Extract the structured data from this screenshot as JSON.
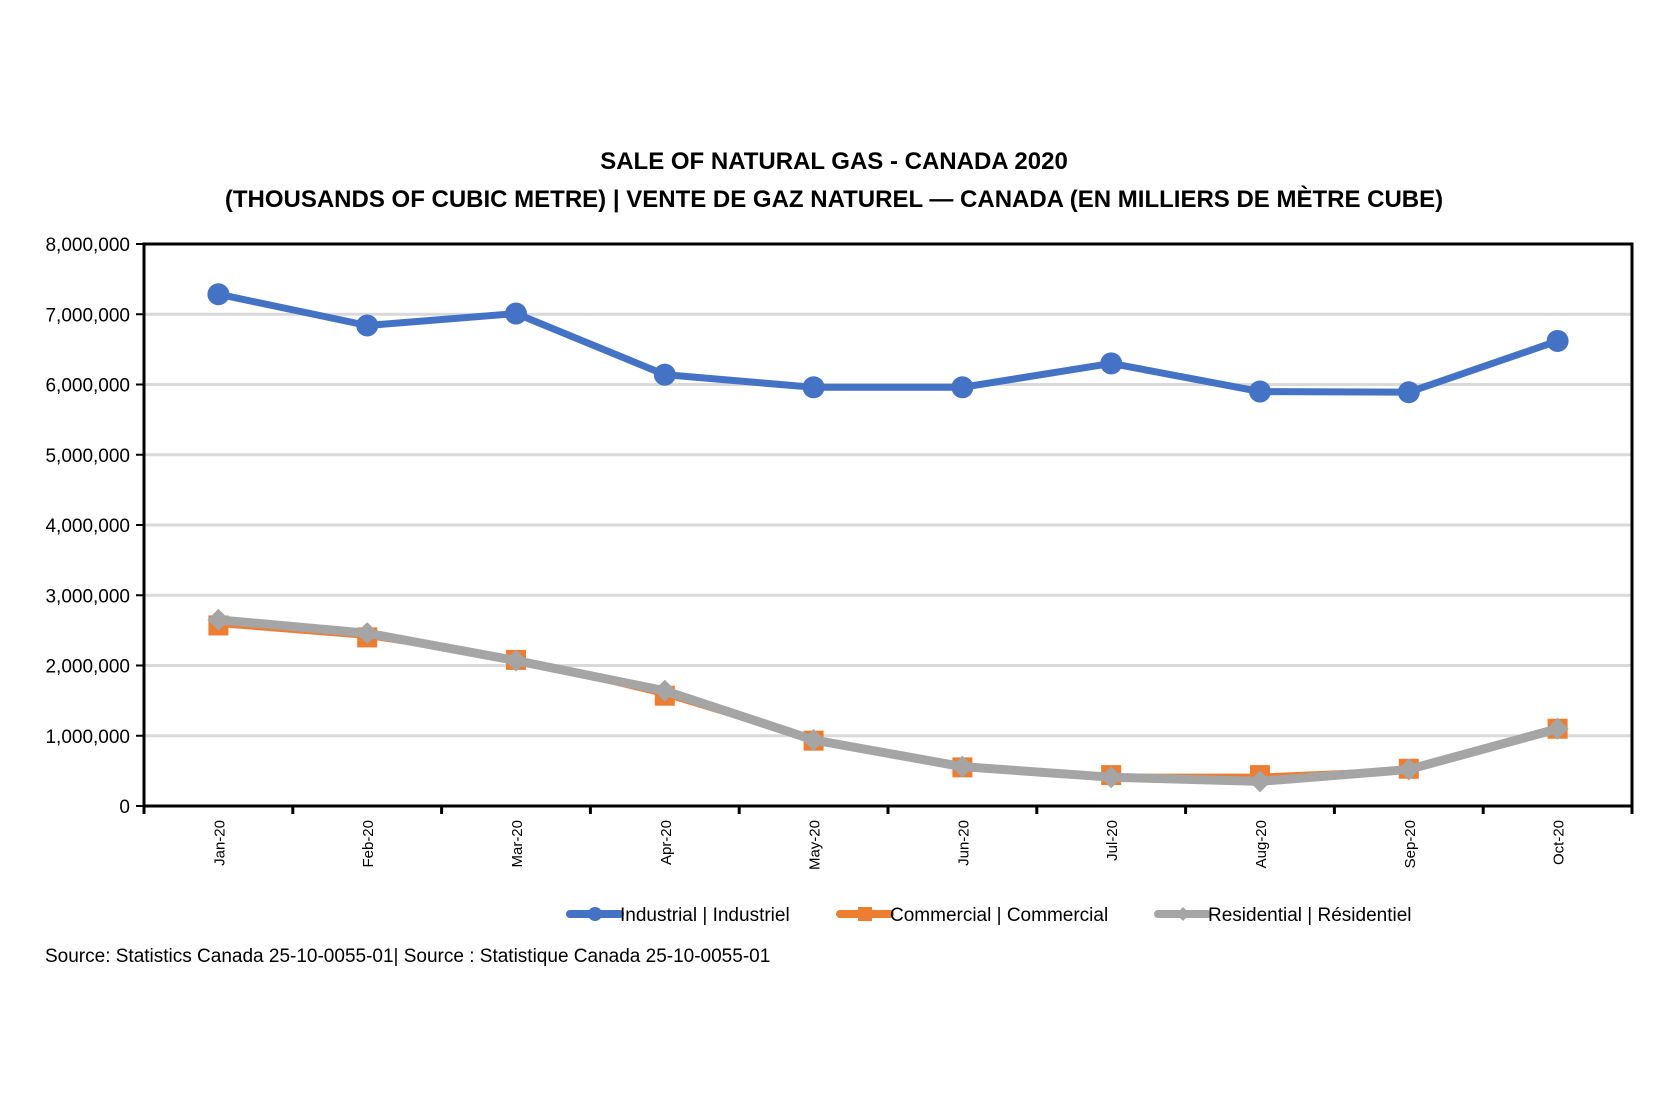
{
  "chart_data": {
    "type": "line",
    "title": "SALE OF NATURAL GAS - CANADA 2020",
    "subtitle": "(THOUSANDS OF CUBIC METRE) | VENTE DE GAZ NATUREL — CANADA (EN MILLIERS DE MÈTRE CUBE)",
    "xlabel": "",
    "ylabel": "",
    "categories": [
      "Jan-20",
      "Feb-20",
      "Mar-20",
      "Apr-20",
      "May-20",
      "Jun-20",
      "Jul-20",
      "Aug-20",
      "Sep-20",
      "Oct-20"
    ],
    "ylim": [
      0,
      8000000
    ],
    "yticks": [
      "0",
      "1,000,000",
      "2,000,000",
      "3,000,000",
      "4,000,000",
      "5,000,000",
      "6,000,000",
      "7,000,000",
      "8,000,000"
    ],
    "grid": true,
    "legend": "bottom",
    "series": [
      {
        "name": "Industrial | Industriel",
        "color": "#4472C4",
        "marker": "circle",
        "values": [
          7285000,
          6840000,
          7010000,
          6140000,
          5960000,
          5960000,
          6300000,
          5900000,
          5890000,
          6620000
        ]
      },
      {
        "name": "Commercial | Commercial",
        "color": "#ED7D31",
        "marker": "square",
        "values": [
          2570000,
          2400000,
          2080000,
          1570000,
          930000,
          550000,
          440000,
          440000,
          530000,
          1100000
        ]
      },
      {
        "name": "Residential | Résidentiel",
        "color": "#A5A5A5",
        "marker": "diamond",
        "values": [
          2650000,
          2460000,
          2070000,
          1640000,
          940000,
          560000,
          410000,
          350000,
          520000,
          1100000
        ]
      }
    ]
  },
  "source": "Source: Statistics Canada 25-10-0055-01| Source : Statistique Canada 25-10-0055-01"
}
